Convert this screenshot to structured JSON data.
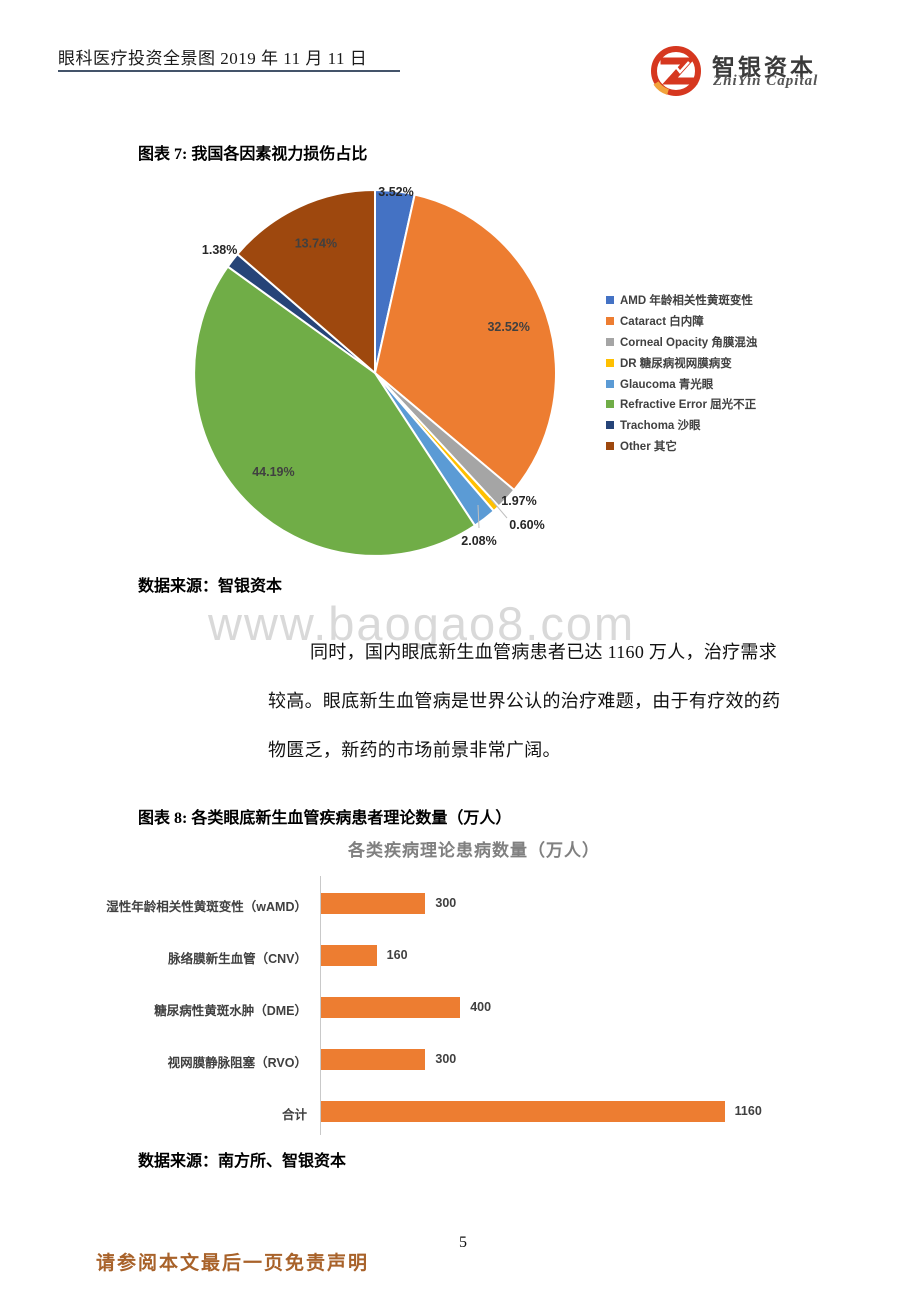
{
  "header": {
    "title": "眼科医疗投资全景图  2019 年 11 月 11 日",
    "logo_cn": "智银资本",
    "logo_en": "ZhiYin Capital",
    "logo_colors": {
      "ring": "#D6371F",
      "accent": "#F2A33C"
    }
  },
  "figure7": {
    "caption": "图表 7: 我国各因素视力损伤占比",
    "source": "数据来源：智银资本"
  },
  "watermark": "www.baogao8.com",
  "paragraph": {
    "lines": [
      "同时，国内眼底新生血管病患者已达 1160 万人，治疗需求",
      "较高。眼底新生血管病是世界公认的治疗难题，由于有疗效的药",
      "物匮乏，新药的市场前景非常广阔。"
    ]
  },
  "figure8": {
    "caption": "图表 8: 各类眼底新生血管疾病患者理论数量（万人）",
    "source": "数据来源：南方所、智银资本"
  },
  "footer": {
    "disclaimer": "请参阅本文最后一页免责声明",
    "page_number": "5"
  },
  "chart_data": [
    {
      "type": "pie",
      "title": "我国各因素视力损伤占比",
      "start_angle_deg": 0,
      "direction": "clockwise",
      "value_format": "percent2",
      "legend_position": "right",
      "slices": [
        {
          "label": "AMD 年龄相关性黄斑变性",
          "value": 3.52,
          "color": "#4472C4",
          "label_placement": "outside"
        },
        {
          "label": "Cataract 白内障",
          "value": 32.52,
          "color": "#ED7D31",
          "label_placement": "inside"
        },
        {
          "label": "Corneal Opacity 角膜混浊",
          "value": 1.97,
          "color": "#A5A5A5",
          "label_placement": "outside"
        },
        {
          "label": "DR 糖尿病视网膜病变",
          "value": 0.6,
          "color": "#FFC000",
          "label_placement": "outside-leader"
        },
        {
          "label": "Glaucoma 青光眼",
          "value": 2.08,
          "color": "#5B9BD5",
          "label_placement": "outside-leader"
        },
        {
          "label": "Refractive Error 屈光不正",
          "value": 44.19,
          "color": "#70AD47",
          "label_placement": "inside"
        },
        {
          "label": "Trachoma 沙眼",
          "value": 1.38,
          "color": "#264478",
          "label_placement": "outside"
        },
        {
          "label": "Other  其它",
          "value": 13.74,
          "color": "#9E480E",
          "label_placement": "inside"
        }
      ]
    },
    {
      "type": "bar",
      "orientation": "horizontal",
      "title": "各类疾病理论患病数量（万人）",
      "categories": [
        "湿性年龄相关性黄斑变性（wAMD）",
        "脉络膜新生血管（CNV）",
        "糖尿病性黄斑水肿（DME）",
        "视网膜静脉阻塞（RVO）",
        "合计"
      ],
      "values": [
        300,
        160,
        400,
        300,
        1160
      ],
      "bar_color": "#ED7D31",
      "xlim": [
        0,
        1250
      ],
      "grid": false,
      "value_labels": true
    }
  ]
}
